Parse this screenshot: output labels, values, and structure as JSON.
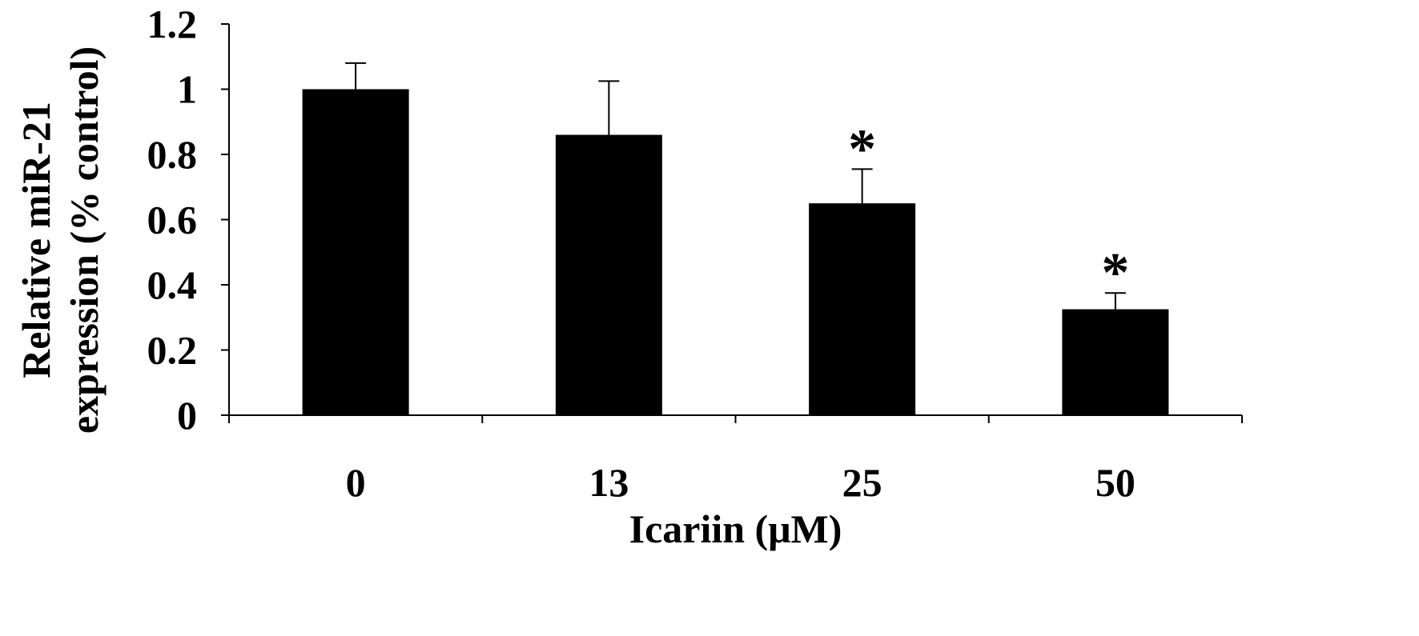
{
  "chart_data": {
    "type": "bar",
    "categories": [
      "0",
      "13",
      "25",
      "50"
    ],
    "values": [
      1.0,
      0.86,
      0.65,
      0.325
    ],
    "errors": [
      0.08,
      0.165,
      0.105,
      0.05
    ],
    "significance": [
      "",
      "",
      "*",
      "*"
    ],
    "xlabel": "Icariin (μM)",
    "ylabel_lines": [
      "Relative miR-21",
      "expression (% control)"
    ],
    "ylim": [
      0,
      1.2
    ],
    "yticks": [
      "0",
      "0.2",
      "0.4",
      "0.6",
      "0.8",
      "1",
      "1.2"
    ],
    "bar_color": "#000000",
    "grid": false
  }
}
